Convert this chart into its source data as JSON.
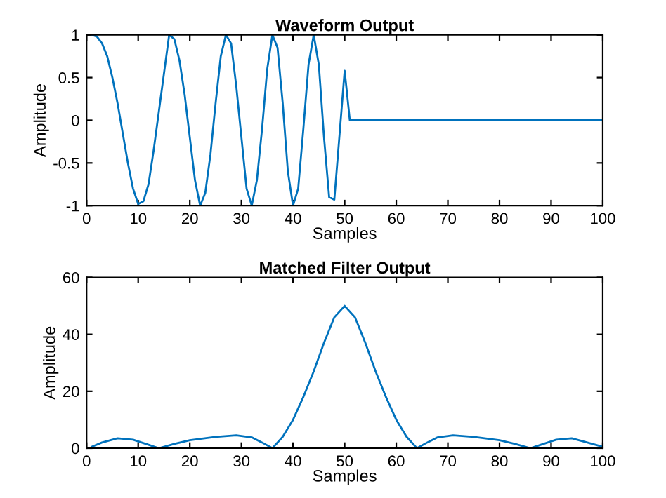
{
  "chart_data": [
    {
      "type": "line",
      "title": "Waveform Output",
      "xlabel": "Samples",
      "ylabel": "Amplitude",
      "xlim": [
        0,
        100
      ],
      "ylim": [
        -1,
        1
      ],
      "xticks": [
        0,
        10,
        20,
        30,
        40,
        50,
        60,
        70,
        80,
        90,
        100
      ],
      "yticks": [
        -1,
        -0.5,
        0,
        0.5,
        1
      ],
      "grid": false,
      "legend": false,
      "series": [
        {
          "color": "#0072bd",
          "x": [
            1,
            2,
            3,
            4,
            5,
            6,
            7,
            8,
            9,
            10,
            11,
            12,
            13,
            14,
            15,
            16,
            17,
            18,
            19,
            20,
            21,
            22,
            23,
            24,
            25,
            26,
            27,
            28,
            29,
            30,
            31,
            32,
            33,
            34,
            35,
            36,
            37,
            38,
            39,
            40,
            41,
            42,
            43,
            44,
            45,
            46,
            47,
            48,
            50,
            51,
            100
          ],
          "values": [
            1,
            0.98,
            0.9,
            0.75,
            0.5,
            0.2,
            -0.15,
            -0.5,
            -0.8,
            -0.98,
            -0.95,
            -0.75,
            -0.35,
            0.1,
            0.55,
            1,
            0.95,
            0.7,
            0.3,
            -0.2,
            -0.7,
            -1,
            -0.85,
            -0.4,
            0.2,
            0.75,
            1,
            0.9,
            0.4,
            -0.2,
            -0.8,
            -1,
            -0.7,
            -0.1,
            0.6,
            1,
            0.85,
            0.2,
            -0.6,
            -1,
            -0.8,
            -0.1,
            0.65,
            1,
            0.65,
            -0.2,
            -0.9,
            -0.93,
            0.58,
            0,
            0
          ]
        }
      ]
    },
    {
      "type": "line",
      "title": "Matched Filter Output",
      "xlabel": "Samples",
      "ylabel": "Amplitude",
      "xlim": [
        0,
        100
      ],
      "ylim": [
        0,
        60
      ],
      "xticks": [
        0,
        10,
        20,
        30,
        40,
        50,
        60,
        70,
        80,
        90,
        100
      ],
      "yticks": [
        0,
        20,
        40,
        60
      ],
      "grid": false,
      "legend": false,
      "series": [
        {
          "color": "#0072bd",
          "x": [
            1,
            3,
            6,
            9,
            12,
            14,
            17,
            20,
            25,
            29,
            32,
            34,
            36,
            38,
            40,
            42,
            44,
            46,
            48,
            50,
            52,
            54,
            56,
            58,
            60,
            62,
            64,
            66,
            68,
            71,
            75,
            80,
            83,
            86,
            88,
            91,
            94,
            97,
            100
          ],
          "values": [
            0.5,
            2,
            3.5,
            3,
            1.2,
            0,
            1.5,
            2.8,
            4,
            4.5,
            3.8,
            2,
            0,
            4,
            10,
            18,
            27,
            37,
            46,
            50,
            46,
            37,
            27,
            18,
            10,
            4,
            0,
            2,
            3.8,
            4.5,
            4,
            2.8,
            1.5,
            0,
            1.2,
            3,
            3.5,
            2,
            0.5
          ]
        }
      ]
    }
  ]
}
